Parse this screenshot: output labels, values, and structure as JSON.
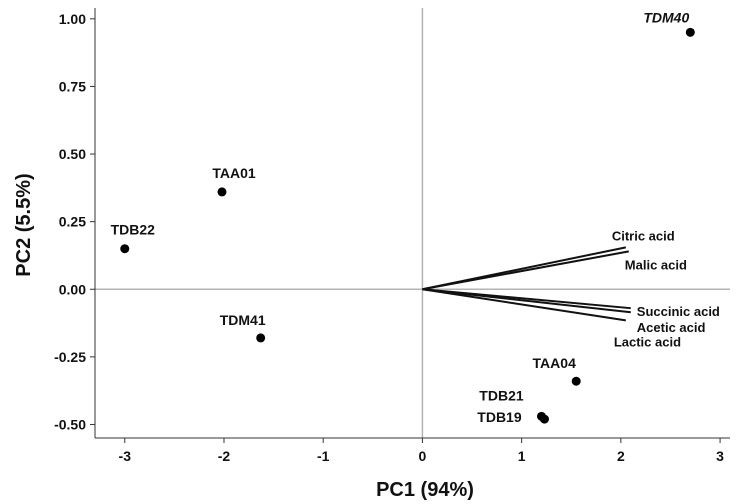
{
  "chart_data": {
    "type": "scatter",
    "title": "",
    "xlabel": "PC1 (94%)",
    "ylabel": "PC2 (5.5%)",
    "xlim": [
      -3.3,
      3.1
    ],
    "ylim": [
      -0.55,
      1.04
    ],
    "x_ticks": [
      -3,
      -2,
      -1,
      0,
      1,
      2,
      3
    ],
    "x_tick_labels": [
      "-3",
      "-2",
      "-1",
      "0",
      "1",
      "2",
      "3"
    ],
    "y_ticks": [
      -0.5,
      -0.25,
      0,
      0.25,
      0.5,
      0.75,
      1.0
    ],
    "y_tick_labels": [
      "-0.50",
      "-0.25",
      "0.00",
      "0.25",
      "0.50",
      "0.75",
      "1.00"
    ],
    "grid": false,
    "points": [
      {
        "label": "TAA01",
        "x": -2.02,
        "y": 0.36
      },
      {
        "label": "TDB22",
        "x": -3.0,
        "y": 0.15
      },
      {
        "label": "TDM41",
        "x": -1.63,
        "y": -0.18
      },
      {
        "label": "TDM40",
        "x": 2.7,
        "y": 0.95,
        "italic": true
      },
      {
        "label": "TAA04",
        "x": 1.55,
        "y": -0.34
      },
      {
        "label": "TDB21",
        "x": 1.2,
        "y": -0.47
      },
      {
        "label": "TDB19",
        "x": 1.23,
        "y": -0.48
      }
    ],
    "loadings": [
      {
        "label": "Citric acid",
        "x": 2.05,
        "y": 0.155
      },
      {
        "label": "Malic acid",
        "x": 2.08,
        "y": 0.14
      },
      {
        "label": "Succinic acid",
        "x": 2.1,
        "y": -0.07
      },
      {
        "label": "Acetic acid",
        "x": 2.1,
        "y": -0.085
      },
      {
        "label": "Lactic acid",
        "x": 2.05,
        "y": -0.115
      }
    ],
    "colors": {
      "points": "#000000",
      "reference_lines": "#b3b3b3",
      "axis": "#333333"
    }
  }
}
